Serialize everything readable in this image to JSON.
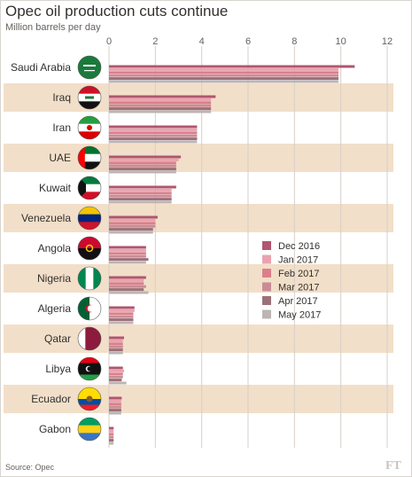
{
  "title": "Opec oil production cuts continue",
  "subtitle": "Million barrels per day",
  "source": "Source: Opec",
  "ft_mark": "FT",
  "colors": {
    "band": "#f2dfc9",
    "series": [
      "#b0566f",
      "#e9a3b0",
      "#dc7f8a",
      "#c98c96",
      "#9c7079",
      "#bdb4b4"
    ]
  },
  "chart_data": {
    "type": "bar",
    "orientation": "horizontal",
    "title": "Opec oil production cuts continue",
    "subtitle": "Million barrels per day",
    "xlim": [
      0,
      12
    ],
    "xticks": [
      "0",
      "2",
      "4",
      "6",
      "8",
      "10",
      "12"
    ],
    "grid": true,
    "legend_position": "right-middle",
    "categories": [
      "Saudi Arabia",
      "Iraq",
      "Iran",
      "UAE",
      "Kuwait",
      "Venezuela",
      "Angola",
      "Nigeria",
      "Algeria",
      "Qatar",
      "Libya",
      "Ecuador",
      "Gabon"
    ],
    "flag_icons": [
      "saudi-arabia-flag-icon",
      "iraq-flag-icon",
      "iran-flag-icon",
      "uae-flag-icon",
      "kuwait-flag-icon",
      "venezuela-flag-icon",
      "angola-flag-icon",
      "nigeria-flag-icon",
      "algeria-flag-icon",
      "qatar-flag-icon",
      "libya-flag-icon",
      "ecuador-flag-icon",
      "gabon-flag-icon"
    ],
    "series": [
      {
        "name": "Dec 2016",
        "values": [
          10.6,
          4.6,
          3.8,
          3.1,
          2.9,
          2.1,
          1.6,
          1.6,
          1.1,
          0.65,
          0.6,
          0.55,
          0.2
        ]
      },
      {
        "name": "Jan 2017",
        "values": [
          9.9,
          4.4,
          3.8,
          3.0,
          2.7,
          2.0,
          1.6,
          1.5,
          1.1,
          0.6,
          0.65,
          0.53,
          0.2
        ]
      },
      {
        "name": "Feb 2017",
        "values": [
          9.9,
          4.4,
          3.8,
          2.9,
          2.7,
          2.0,
          1.6,
          1.5,
          1.05,
          0.6,
          0.6,
          0.53,
          0.2
        ]
      },
      {
        "name": "Mar 2017",
        "values": [
          9.9,
          4.4,
          3.8,
          2.9,
          2.7,
          2.0,
          1.6,
          1.6,
          1.05,
          0.6,
          0.6,
          0.53,
          0.2
        ]
      },
      {
        "name": "Apr 2017",
        "values": [
          9.9,
          4.4,
          3.8,
          2.9,
          2.7,
          1.9,
          1.7,
          1.5,
          1.05,
          0.6,
          0.55,
          0.53,
          0.2
        ]
      },
      {
        "name": "May 2017",
        "values": [
          9.9,
          4.4,
          3.8,
          2.9,
          2.7,
          1.9,
          1.6,
          1.7,
          1.05,
          0.6,
          0.75,
          0.53,
          0.2
        ]
      }
    ]
  }
}
